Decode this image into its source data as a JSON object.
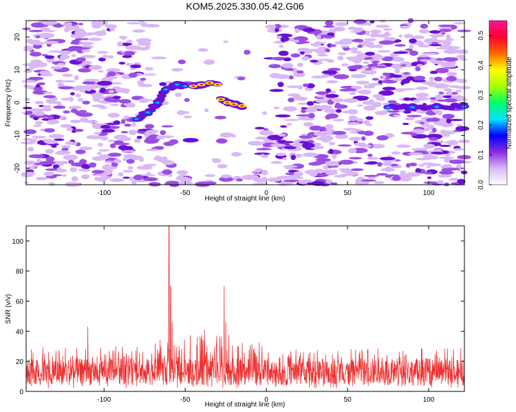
{
  "title": "KOM5.2025.330.05.42.G06",
  "chart_data": [
    {
      "type": "heatmap",
      "xlabel": "Height of straight line (km)",
      "ylabel": "Frequency (Hz)",
      "xlim": [
        -148,
        122
      ],
      "ylim": [
        -25,
        25
      ],
      "xticks": [
        -100,
        -50,
        0,
        50,
        100
      ],
      "xtick_labels": [
        "-100",
        "-50",
        "0",
        "50",
        "100"
      ],
      "yticks": [
        -20,
        -10,
        0,
        10,
        20
      ],
      "ytick_labels": [
        "-20",
        "-10",
        "0",
        "10",
        "20"
      ],
      "colorbar": {
        "label": "Normalized spectral amplitude",
        "range": [
          0,
          0.55
        ],
        "ticks": [
          0.0,
          0.1,
          0.2,
          0.3,
          0.4,
          0.5
        ],
        "tick_labels": [
          "0.0",
          "0.1",
          "0.2",
          "0.3",
          "0.4",
          "0.5"
        ],
        "colors": [
          "#ffffff",
          "#d9b8f5",
          "#8a2be2",
          "#0000ff",
          "#00e5ff",
          "#00ff66",
          "#a8ff00",
          "#ffff00",
          "#ff6600",
          "#ff0033",
          "#ff1493"
        ]
      },
      "features": [
        {
          "name": "arc-left",
          "x": [
            -80,
            -73,
            -67,
            -62,
            -55,
            -50
          ],
          "y": [
            -5,
            -3,
            0,
            4,
            5.5,
            5
          ],
          "amplitude": 0.2
        },
        {
          "name": "arc-top",
          "x": [
            -45,
            -40,
            -35,
            -30
          ],
          "y": [
            5,
            5.5,
            6,
            5.5
          ],
          "amplitude": 0.5
        },
        {
          "name": "arc-right",
          "x": [
            -28,
            -24,
            -20,
            -15
          ],
          "y": [
            1,
            0,
            -0.5,
            -1
          ],
          "amplitude": 0.5
        },
        {
          "name": "tail-line",
          "x": [
            75,
            90,
            105,
            122
          ],
          "y": [
            -1.5,
            -1.4,
            -1.3,
            -1.2
          ],
          "amplitude": 0.15
        }
      ]
    },
    {
      "type": "line",
      "xlabel": "Height of straight line (km)",
      "ylabel": "SNR (v/v)",
      "xlim": [
        -148,
        122
      ],
      "ylim": [
        0,
        110
      ],
      "xticks": [
        -100,
        -50,
        0,
        50,
        100
      ],
      "xtick_labels": [
        "-100",
        "-50",
        "0",
        "50",
        "100"
      ],
      "yticks": [
        0,
        20,
        40,
        60,
        80,
        100
      ],
      "ytick_labels": [
        "0",
        "20",
        "40",
        "60",
        "80",
        "100"
      ],
      "series": [
        {
          "name": "SNR",
          "color": "#ee3030",
          "baseline": 13,
          "noise_amplitude": 9,
          "peaks": [
            {
              "x": -60,
              "y": 110
            },
            {
              "x": -59,
              "y": 70
            },
            {
              "x": -58,
              "y": 46
            },
            {
              "x": -26,
              "y": 70
            },
            {
              "x": -110,
              "y": 43
            },
            {
              "x": -25,
              "y": 46
            }
          ],
          "envelope": [
            {
              "x": -148,
              "y": 30
            },
            {
              "x": -75,
              "y": 30
            },
            {
              "x": -65,
              "y": 38
            },
            {
              "x": -55,
              "y": 30
            },
            {
              "x": -45,
              "y": 40
            },
            {
              "x": -35,
              "y": 42
            },
            {
              "x": -20,
              "y": 40
            },
            {
              "x": -5,
              "y": 34
            },
            {
              "x": 10,
              "y": 28
            },
            {
              "x": 122,
              "y": 30
            }
          ]
        }
      ]
    }
  ]
}
